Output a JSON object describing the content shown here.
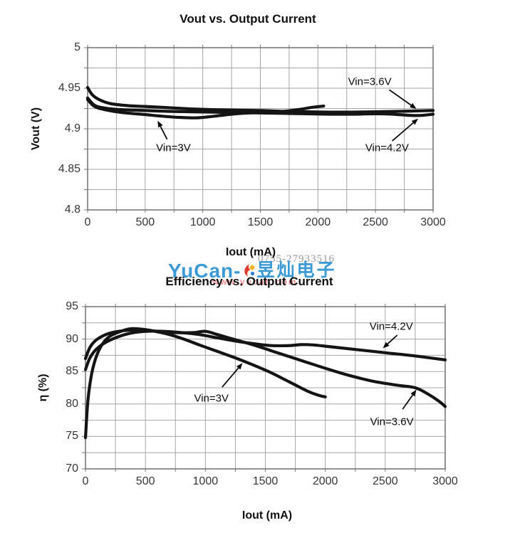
{
  "watermark": {
    "phone": "0755-27933516",
    "brand": "YuCan-",
    "brand_cjk": "昱灿电子",
    "url": "www.yucan.com",
    "brand_color": "#3b9ad6",
    "url_color": "#ef8a8a",
    "phone_color": "#9a9aa2",
    "spark_icon": "spark-icon"
  },
  "chart_data": [
    {
      "type": "line",
      "title": "Vout vs. Output Current",
      "xlabel": "Iout (mA)",
      "ylabel": "Vout (V)",
      "xlim": [
        0,
        3000
      ],
      "ylim": [
        4.8,
        5
      ],
      "x_minor": 250,
      "y_minor": 0.025,
      "grid": true,
      "legend": "inline-annotations",
      "xticks": [
        0,
        500,
        1000,
        1500,
        2000,
        2500,
        3000
      ],
      "xtick_labels": [
        "0",
        "500",
        "1000",
        "1500",
        "2000",
        "2500",
        "3000"
      ],
      "yticks": [
        5,
        4.95,
        4.9,
        4.85,
        4.8
      ],
      "ytick_labels": [
        "5",
        "4.95",
        "4.9",
        "4.85",
        "4.8"
      ],
      "series": [
        {
          "name": "Vin=3.6V",
          "points": [
            [
              0,
              4.951
            ],
            [
              40,
              4.942
            ],
            [
              100,
              4.936
            ],
            [
              200,
              4.931
            ],
            [
              350,
              4.9285
            ],
            [
              500,
              4.9275
            ],
            [
              700,
              4.926
            ],
            [
              900,
              4.9245
            ],
            [
              1100,
              4.9235
            ],
            [
              1300,
              4.923
            ],
            [
              1500,
              4.9225
            ],
            [
              1700,
              4.9215
            ],
            [
              1900,
              4.921
            ],
            [
              2100,
              4.9205
            ],
            [
              2300,
              4.9205
            ],
            [
              2500,
              4.921
            ],
            [
              2700,
              4.9215
            ],
            [
              2850,
              4.922
            ],
            [
              3000,
              4.9225
            ]
          ]
        },
        {
          "name": "Vin=4.2V",
          "points": [
            [
              0,
              4.938
            ],
            [
              60,
              4.929
            ],
            [
              150,
              4.9255
            ],
            [
              300,
              4.9235
            ],
            [
              500,
              4.9225
            ],
            [
              700,
              4.9215
            ],
            [
              900,
              4.921
            ],
            [
              1100,
              4.9205
            ],
            [
              1300,
              4.92
            ],
            [
              1500,
              4.9195
            ],
            [
              1700,
              4.919
            ],
            [
              1900,
              4.9185
            ],
            [
              2100,
              4.918
            ],
            [
              2300,
              4.918
            ],
            [
              2500,
              4.9185
            ],
            [
              2650,
              4.918
            ],
            [
              2800,
              4.9165
            ],
            [
              2900,
              4.9165
            ],
            [
              3000,
              4.918
            ]
          ]
        },
        {
          "name": "Vin=3V",
          "points": [
            [
              0,
              4.936
            ],
            [
              60,
              4.9275
            ],
            [
              150,
              4.9235
            ],
            [
              300,
              4.92
            ],
            [
              500,
              4.9175
            ],
            [
              650,
              4.9155
            ],
            [
              800,
              4.914
            ],
            [
              950,
              4.9135
            ],
            [
              1100,
              4.9155
            ],
            [
              1250,
              4.918
            ],
            [
              1400,
              4.9195
            ],
            [
              1550,
              4.9205
            ],
            [
              1700,
              4.9215
            ],
            [
              1850,
              4.924
            ],
            [
              1950,
              4.9265
            ],
            [
              2050,
              4.928
            ]
          ]
        }
      ],
      "annotations": [
        {
          "text": "Vin=3.6V",
          "label_at": [
            2450,
            4.958
          ],
          "arrow_from": [
            2620,
            4.948
          ],
          "arrow_to": [
            2855,
            4.9245
          ]
        },
        {
          "text": "Vin=3V",
          "label_at": [
            745,
            4.876
          ],
          "arrow_from": [
            690,
            4.887
          ],
          "arrow_to": [
            608,
            4.91
          ]
        },
        {
          "text": "Vin=4.2V",
          "label_at": [
            2600,
            4.876
          ],
          "arrow_from": [
            2645,
            4.885
          ],
          "arrow_to": [
            2870,
            4.9125
          ]
        }
      ]
    },
    {
      "type": "line",
      "title": "Efficiency vs. Output Current",
      "xlabel": "Iout (mA)",
      "ylabel": "η (%)",
      "xlim": [
        0,
        3000
      ],
      "ylim": [
        70,
        95
      ],
      "x_minor": 250,
      "y_minor": 2.5,
      "grid": true,
      "legend": "inline-annotations",
      "xticks": [
        0,
        500,
        1000,
        1500,
        2000,
        2500,
        3000
      ],
      "xtick_labels": [
        "0",
        "500",
        "1000",
        "1500",
        "2000",
        "2500",
        "3000"
      ],
      "yticks": [
        95,
        90,
        85,
        80,
        75,
        70
      ],
      "ytick_labels": [
        "95",
        "90",
        "85",
        "80",
        "75",
        "70"
      ],
      "series": [
        {
          "name": "Vin=3V",
          "points": [
            [
              0,
              74.8
            ],
            [
              20,
              80.5
            ],
            [
              50,
              84.5
            ],
            [
              90,
              87.3
            ],
            [
              140,
              89.2
            ],
            [
              200,
              90.4
            ],
            [
              280,
              91.1
            ],
            [
              380,
              91.6
            ],
            [
              480,
              91.5
            ],
            [
              580,
              91.2
            ],
            [
              700,
              90.7
            ],
            [
              820,
              90.0
            ],
            [
              950,
              89.1
            ],
            [
              1100,
              88.1
            ],
            [
              1250,
              87.1
            ],
            [
              1400,
              86.0
            ],
            [
              1550,
              84.8
            ],
            [
              1700,
              83.4
            ],
            [
              1850,
              82.0
            ],
            [
              1950,
              81.3
            ],
            [
              2000,
              81.1
            ]
          ]
        },
        {
          "name": "Vin=3.6V",
          "points": [
            [
              0,
              87.0
            ],
            [
              40,
              88.8
            ],
            [
              100,
              90.0
            ],
            [
              200,
              90.9
            ],
            [
              320,
              91.3
            ],
            [
              450,
              91.4
            ],
            [
              600,
              91.2
            ],
            [
              750,
              91.0
            ],
            [
              900,
              91.0
            ],
            [
              1000,
              91.2
            ],
            [
              1100,
              90.7
            ],
            [
              1250,
              89.9
            ],
            [
              1400,
              89.1
            ],
            [
              1600,
              87.9
            ],
            [
              1800,
              86.7
            ],
            [
              2000,
              85.5
            ],
            [
              2200,
              84.4
            ],
            [
              2400,
              83.5
            ],
            [
              2600,
              82.9
            ],
            [
              2750,
              82.5
            ],
            [
              2850,
              81.6
            ],
            [
              2950,
              80.4
            ],
            [
              3000,
              79.6
            ]
          ]
        },
        {
          "name": "Vin=4.2V",
          "points": [
            [
              0,
              85.3
            ],
            [
              40,
              87.2
            ],
            [
              100,
              88.6
            ],
            [
              200,
              89.8
            ],
            [
              350,
              90.8
            ],
            [
              500,
              91.2
            ],
            [
              650,
              91.2
            ],
            [
              800,
              91.0
            ],
            [
              950,
              90.7
            ],
            [
              1100,
              90.2
            ],
            [
              1250,
              89.7
            ],
            [
              1400,
              89.3
            ],
            [
              1550,
              89.0
            ],
            [
              1700,
              89.0
            ],
            [
              1800,
              89.15
            ],
            [
              1900,
              89.1
            ],
            [
              2050,
              88.8
            ],
            [
              2250,
              88.4
            ],
            [
              2500,
              87.9
            ],
            [
              2750,
              87.4
            ],
            [
              3000,
              86.8
            ]
          ]
        }
      ],
      "annotations": [
        {
          "text": "Vin=4.2V",
          "label_at": [
            2550,
            91.9
          ],
          "arrow_from": [
            2600,
            90.6
          ],
          "arrow_to": [
            2480,
            88.6
          ]
        },
        {
          "text": "Vin=3V",
          "label_at": [
            1050,
            80.9
          ],
          "arrow_from": [
            1140,
            82.6
          ],
          "arrow_to": [
            1310,
            86.3
          ]
        },
        {
          "text": "Vin=3.6V",
          "label_at": [
            2555,
            77.2
          ],
          "arrow_from": [
            2645,
            79.2
          ],
          "arrow_to": [
            2760,
            82.2
          ]
        }
      ]
    }
  ]
}
